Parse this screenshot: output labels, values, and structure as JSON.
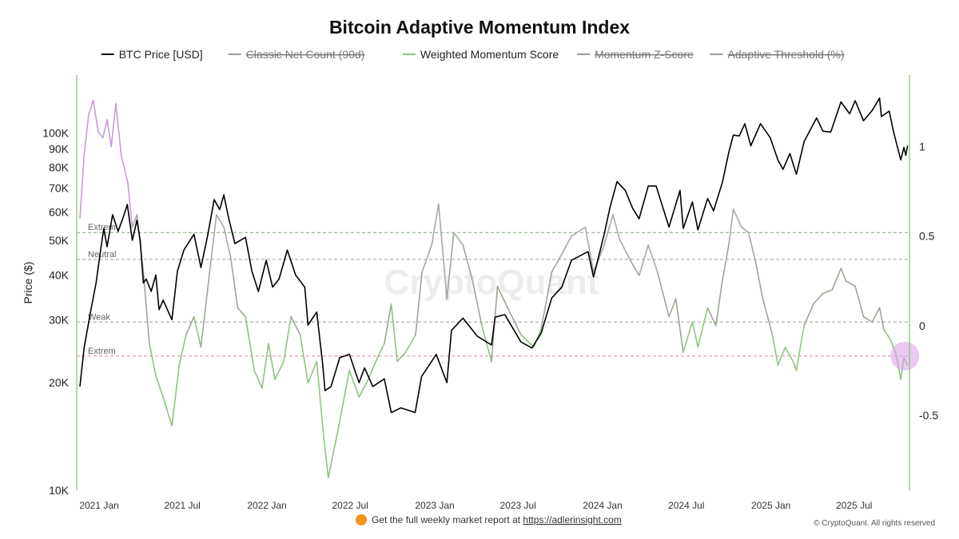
{
  "chart_data": {
    "type": "line",
    "title": "Bitcoin Adaptive Momentum Index",
    "watermark": "CryptoQuant",
    "ylabel_left": "Price ($)",
    "ylabel_right": "",
    "left_axis": {
      "scale": "log",
      "range": [
        10000,
        145000
      ],
      "ticks": [
        {
          "value": 10000,
          "label": "10K"
        },
        {
          "value": 20000,
          "label": "20K"
        },
        {
          "value": 30000,
          "label": "30K"
        },
        {
          "value": 40000,
          "label": "40K"
        },
        {
          "value": 50000,
          "label": "50K"
        },
        {
          "value": 60000,
          "label": "60K"
        },
        {
          "value": 70000,
          "label": "70K"
        },
        {
          "value": 80000,
          "label": "80K"
        },
        {
          "value": 90000,
          "label": "90K"
        },
        {
          "value": 100000,
          "label": "100K"
        }
      ]
    },
    "right_axis": {
      "scale": "linear",
      "range": [
        -0.92,
        1.4
      ],
      "ticks": [
        {
          "value": 1,
          "label": "1"
        },
        {
          "value": 0.5,
          "label": "0.5"
        },
        {
          "value": 0,
          "label": "0"
        },
        {
          "value": -0.5,
          "label": "-0.5"
        }
      ]
    },
    "x_axis": {
      "range": [
        "2020-12-25",
        "2025-12-10"
      ],
      "ticks": [
        {
          "date": "2021-01-01",
          "label": "2021 Jan"
        },
        {
          "date": "2021-07-01",
          "label": "2021 Jul"
        },
        {
          "date": "2022-01-01",
          "label": "2022 Jan"
        },
        {
          "date": "2022-07-01",
          "label": "2022 Jul"
        },
        {
          "date": "2023-01-01",
          "label": "2023 Jan"
        },
        {
          "date": "2023-07-01",
          "label": "2023 Jul"
        },
        {
          "date": "2024-01-01",
          "label": "2024 Jan"
        },
        {
          "date": "2024-07-01",
          "label": "2024 Jul"
        },
        {
          "date": "2025-01-01",
          "label": "2025 Jan"
        },
        {
          "date": "2025-07-01",
          "label": "2025 Jul"
        }
      ]
    },
    "legend": {
      "placement": "top-center",
      "items": [
        {
          "label": "BTC Price [USD]",
          "color": "#000000",
          "enabled": true
        },
        {
          "label": "Classic Net Count (90d)",
          "color": "#999999",
          "enabled": false
        },
        {
          "label": "Weighted Momentum Score",
          "color": "#8fc47f",
          "enabled": true
        },
        {
          "label": "Momentum Z-Score",
          "color": "#999999",
          "enabled": false
        },
        {
          "label": "Adaptive Threshold (%)",
          "color": "#999999",
          "enabled": false
        }
      ]
    },
    "reference_lines": [
      {
        "label": "Extrem",
        "value": 0.52,
        "color": "#7aa874",
        "dash": true
      },
      {
        "label": "Neutral",
        "value": 0.37,
        "color": "#9a9a9a",
        "dash": true
      },
      {
        "label": "Weak",
        "value": 0.02,
        "color": "#9a9a9a",
        "dash": true
      },
      {
        "label": "Extrem",
        "value": -0.17,
        "color": "#c98f9f",
        "dash": true
      }
    ],
    "series": [
      {
        "name": "BTC Price [USD]",
        "axis": "left",
        "color": "#000000",
        "points": [
          [
            "2021-01-01",
            19500
          ],
          [
            "2021-01-10",
            25000
          ],
          [
            "2021-01-25",
            32000
          ],
          [
            "2021-02-05",
            38000
          ],
          [
            "2021-02-15",
            47000
          ],
          [
            "2021-02-22",
            54000
          ],
          [
            "2021-03-01",
            48000
          ],
          [
            "2021-03-13",
            59000
          ],
          [
            "2021-03-25",
            53000
          ],
          [
            "2021-04-05",
            58000
          ],
          [
            "2021-04-14",
            63000
          ],
          [
            "2021-04-25",
            50000
          ],
          [
            "2021-05-05",
            57000
          ],
          [
            "2021-05-12",
            50000
          ],
          [
            "2021-05-19",
            38000
          ],
          [
            "2021-05-25",
            39000
          ],
          [
            "2021-06-05",
            36000
          ],
          [
            "2021-06-15",
            40000
          ],
          [
            "2021-06-22",
            32000
          ],
          [
            "2021-07-01",
            34000
          ],
          [
            "2021-07-20",
            30000
          ],
          [
            "2021-08-01",
            41000
          ],
          [
            "2021-08-15",
            47000
          ],
          [
            "2021-09-06",
            52000
          ],
          [
            "2021-09-21",
            42000
          ],
          [
            "2021-10-05",
            51000
          ],
          [
            "2021-10-20",
            65000
          ],
          [
            "2021-11-01",
            61000
          ],
          [
            "2021-11-10",
            67000
          ],
          [
            "2021-11-20",
            58000
          ],
          [
            "2021-12-04",
            49000
          ],
          [
            "2021-12-27",
            51000
          ],
          [
            "2022-01-10",
            41000
          ],
          [
            "2022-01-24",
            36000
          ],
          [
            "2022-02-10",
            44000
          ],
          [
            "2022-02-24",
            37000
          ],
          [
            "2022-03-10",
            39000
          ],
          [
            "2022-03-28",
            47000
          ],
          [
            "2022-04-15",
            40000
          ],
          [
            "2022-05-05",
            37000
          ],
          [
            "2022-05-12",
            29000
          ],
          [
            "2022-05-31",
            31500
          ],
          [
            "2022-06-13",
            22500
          ],
          [
            "2022-06-18",
            19000
          ],
          [
            "2022-07-01",
            19500
          ],
          [
            "2022-07-20",
            23500
          ],
          [
            "2022-08-10",
            24000
          ],
          [
            "2022-08-31",
            20000
          ],
          [
            "2022-09-12",
            22000
          ],
          [
            "2022-09-30",
            19500
          ],
          [
            "2022-10-25",
            20500
          ],
          [
            "2022-11-09",
            16500
          ],
          [
            "2022-11-30",
            17000
          ],
          [
            "2022-12-31",
            16500
          ],
          [
            "2023-01-14",
            20800
          ],
          [
            "2023-02-15",
            24000
          ],
          [
            "2023-03-10",
            20000
          ],
          [
            "2023-03-20",
            28000
          ],
          [
            "2023-04-14",
            30300
          ],
          [
            "2023-05-15",
            27000
          ],
          [
            "2023-06-15",
            25500
          ],
          [
            "2023-06-23",
            30500
          ],
          [
            "2023-07-14",
            31000
          ],
          [
            "2023-08-18",
            26000
          ],
          [
            "2023-09-11",
            25000
          ],
          [
            "2023-10-01",
            27500
          ],
          [
            "2023-10-24",
            34500
          ],
          [
            "2023-11-15",
            37000
          ],
          [
            "2023-12-06",
            44000
          ],
          [
            "2024-01-11",
            46500
          ],
          [
            "2024-01-23",
            39500
          ],
          [
            "2024-02-15",
            52000
          ],
          [
            "2024-02-28",
            62000
          ],
          [
            "2024-03-14",
            73000
          ],
          [
            "2024-04-01",
            69000
          ],
          [
            "2024-04-17",
            61500
          ],
          [
            "2024-05-01",
            57500
          ],
          [
            "2024-05-21",
            71000
          ],
          [
            "2024-06-07",
            71000
          ],
          [
            "2024-07-05",
            54500
          ],
          [
            "2024-07-29",
            69000
          ],
          [
            "2024-08-05",
            54000
          ],
          [
            "2024-08-25",
            64000
          ],
          [
            "2024-09-06",
            53500
          ],
          [
            "2024-09-27",
            65500
          ],
          [
            "2024-10-10",
            60500
          ],
          [
            "2024-10-29",
            72500
          ],
          [
            "2024-11-12",
            88000
          ],
          [
            "2024-11-22",
            98500
          ],
          [
            "2024-12-05",
            98000
          ],
          [
            "2024-12-17",
            106000
          ],
          [
            "2024-12-30",
            92000
          ],
          [
            "2025-01-20",
            106000
          ],
          [
            "2025-02-10",
            97000
          ],
          [
            "2025-02-27",
            84000
          ],
          [
            "2025-03-10",
            79000
          ],
          [
            "2025-03-25",
            87500
          ],
          [
            "2025-04-08",
            76500
          ],
          [
            "2025-04-25",
            94500
          ],
          [
            "2025-05-22",
            110000
          ],
          [
            "2025-06-05",
            101000
          ],
          [
            "2025-06-22",
            100500
          ],
          [
            "2025-07-14",
            122000
          ],
          [
            "2025-08-02",
            113000
          ],
          [
            "2025-08-14",
            123000
          ],
          [
            "2025-09-01",
            108000
          ],
          [
            "2025-09-20",
            115500
          ],
          [
            "2025-10-06",
            125000
          ],
          [
            "2025-10-10",
            111000
          ],
          [
            "2025-10-27",
            115000
          ],
          [
            "2025-11-05",
            101000
          ],
          [
            "2025-11-21",
            84000
          ],
          [
            "2025-11-28",
            91000
          ],
          [
            "2025-12-02",
            86500
          ],
          [
            "2025-12-06",
            92000
          ]
        ]
      },
      {
        "name": "Weighted Momentum Score",
        "axis": "right",
        "color": "#8fc47f",
        "points": [
          [
            "2021-01-01",
            0.6
          ],
          [
            "2021-01-10",
            0.95
          ],
          [
            "2021-01-20",
            1.18
          ],
          [
            "2021-01-30",
            1.26
          ],
          [
            "2021-02-10",
            1.08
          ],
          [
            "2021-02-20",
            1.05
          ],
          [
            "2021-03-01",
            1.15
          ],
          [
            "2021-03-10",
            1.0
          ],
          [
            "2021-03-20",
            1.24
          ],
          [
            "2021-04-01",
            0.95
          ],
          [
            "2021-04-15",
            0.8
          ],
          [
            "2021-04-25",
            0.55
          ],
          [
            "2021-05-05",
            0.62
          ],
          [
            "2021-05-19",
            0.3
          ],
          [
            "2021-06-01",
            -0.1
          ],
          [
            "2021-06-15",
            -0.28
          ],
          [
            "2021-07-01",
            -0.4
          ],
          [
            "2021-07-20",
            -0.56
          ],
          [
            "2021-08-05",
            -0.22
          ],
          [
            "2021-08-20",
            -0.05
          ],
          [
            "2021-09-06",
            0.05
          ],
          [
            "2021-09-21",
            -0.12
          ],
          [
            "2021-10-10",
            0.3
          ],
          [
            "2021-10-25",
            0.62
          ],
          [
            "2021-11-10",
            0.55
          ],
          [
            "2021-11-25",
            0.38
          ],
          [
            "2021-12-10",
            0.1
          ],
          [
            "2021-12-27",
            0.05
          ],
          [
            "2022-01-15",
            -0.25
          ],
          [
            "2022-02-01",
            -0.35
          ],
          [
            "2022-02-15",
            -0.1
          ],
          [
            "2022-03-01",
            -0.3
          ],
          [
            "2022-03-20",
            -0.2
          ],
          [
            "2022-04-05",
            0.05
          ],
          [
            "2022-04-25",
            -0.05
          ],
          [
            "2022-05-12",
            -0.32
          ],
          [
            "2022-05-31",
            -0.2
          ],
          [
            "2022-06-15",
            -0.62
          ],
          [
            "2022-06-25",
            -0.85
          ],
          [
            "2022-07-15",
            -0.6
          ],
          [
            "2022-08-10",
            -0.25
          ],
          [
            "2022-08-31",
            -0.4
          ],
          [
            "2022-09-20",
            -0.3
          ],
          [
            "2022-10-10",
            -0.18
          ],
          [
            "2022-10-25",
            -0.1
          ],
          [
            "2022-11-09",
            0.12
          ],
          [
            "2022-11-22",
            -0.2
          ],
          [
            "2022-12-10",
            -0.15
          ],
          [
            "2023-01-01",
            -0.05
          ],
          [
            "2023-01-15",
            0.3
          ],
          [
            "2023-02-05",
            0.45
          ],
          [
            "2023-02-20",
            0.68
          ],
          [
            "2023-03-10",
            0.15
          ],
          [
            "2023-03-25",
            0.52
          ],
          [
            "2023-04-14",
            0.45
          ],
          [
            "2023-05-05",
            0.25
          ],
          [
            "2023-05-25",
            0.0
          ],
          [
            "2023-06-15",
            -0.2
          ],
          [
            "2023-06-28",
            0.22
          ],
          [
            "2023-07-20",
            0.1
          ],
          [
            "2023-08-18",
            -0.05
          ],
          [
            "2023-09-15",
            -0.12
          ],
          [
            "2023-10-01",
            -0.02
          ],
          [
            "2023-10-24",
            0.3
          ],
          [
            "2023-11-15",
            0.4
          ],
          [
            "2023-12-06",
            0.5
          ],
          [
            "2024-01-05",
            0.55
          ],
          [
            "2024-01-23",
            0.3
          ],
          [
            "2024-02-15",
            0.45
          ],
          [
            "2024-03-05",
            0.62
          ],
          [
            "2024-03-20",
            0.48
          ],
          [
            "2024-04-15",
            0.35
          ],
          [
            "2024-05-01",
            0.28
          ],
          [
            "2024-05-21",
            0.45
          ],
          [
            "2024-06-10",
            0.3
          ],
          [
            "2024-07-05",
            0.05
          ],
          [
            "2024-07-20",
            0.15
          ],
          [
            "2024-08-05",
            -0.15
          ],
          [
            "2024-08-25",
            0.02
          ],
          [
            "2024-09-06",
            -0.12
          ],
          [
            "2024-09-27",
            0.1
          ],
          [
            "2024-10-15",
            0.0
          ],
          [
            "2024-10-29",
            0.25
          ],
          [
            "2024-11-12",
            0.45
          ],
          [
            "2024-11-22",
            0.65
          ],
          [
            "2024-12-10",
            0.55
          ],
          [
            "2024-12-25",
            0.52
          ],
          [
            "2025-01-10",
            0.35
          ],
          [
            "2025-01-25",
            0.15
          ],
          [
            "2025-02-15",
            -0.05
          ],
          [
            "2025-02-27",
            -0.22
          ],
          [
            "2025-03-15",
            -0.12
          ],
          [
            "2025-04-01",
            -0.2
          ],
          [
            "2025-04-08",
            -0.25
          ],
          [
            "2025-04-25",
            0.0
          ],
          [
            "2025-05-15",
            0.12
          ],
          [
            "2025-06-05",
            0.18
          ],
          [
            "2025-06-25",
            0.2
          ],
          [
            "2025-07-14",
            0.32
          ],
          [
            "2025-07-25",
            0.25
          ],
          [
            "2025-08-14",
            0.22
          ],
          [
            "2025-09-01",
            0.05
          ],
          [
            "2025-09-20",
            0.02
          ],
          [
            "2025-10-06",
            0.1
          ],
          [
            "2025-10-15",
            -0.02
          ],
          [
            "2025-10-30",
            -0.08
          ],
          [
            "2025-11-10",
            -0.15
          ],
          [
            "2025-11-21",
            -0.3
          ],
          [
            "2025-11-28",
            -0.18
          ],
          [
            "2025-12-06",
            -0.22
          ]
        ]
      }
    ],
    "highlight": {
      "date": "2025-11-30",
      "value": -0.17,
      "color": "#d9a6e8"
    },
    "footer": {
      "icon": "bitcoin-icon",
      "text": "Get the full weekly market report at ",
      "link": "https://adlerinsight.com",
      "copyright": "© CryptoQuant. All rights reserved"
    }
  }
}
